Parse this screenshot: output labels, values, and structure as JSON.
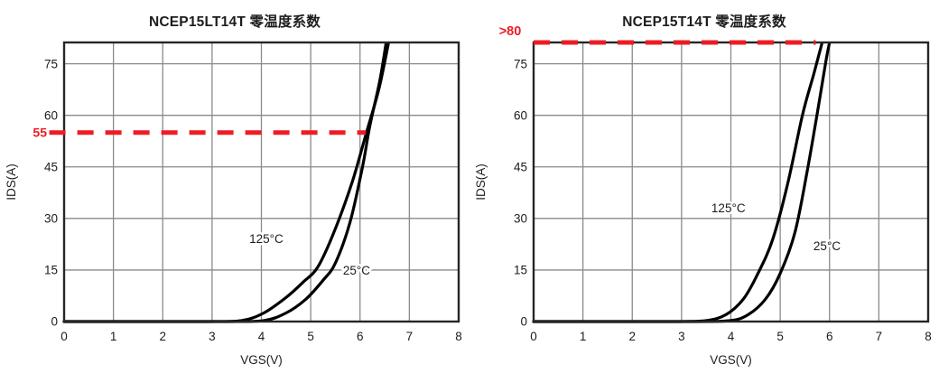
{
  "figure_title": "NCEP15LT14T / NCEP15T14T zero temperature coefficient comparison",
  "colors": {
    "background": "#ffffff",
    "annotation_red": "#ed1c24",
    "grid": "#8a8a8a",
    "plot_border": "#262626",
    "curve": "#000000",
    "text": "#1c1c1c"
  },
  "chart_data": [
    {
      "type": "line",
      "title": "NCEP15LT14T 零温度系数",
      "xlabel": "VGS(V)",
      "ylabel": "IDS(A)",
      "xlim": [
        0,
        8
      ],
      "ylim": [
        0,
        81.2
      ],
      "xticks": [
        0,
        1,
        2,
        3,
        4,
        5,
        6,
        7,
        8
      ],
      "yticks": [
        0,
        15,
        30,
        45,
        60,
        75
      ],
      "grid": true,
      "legend_position": "inline-labels",
      "series": [
        {
          "name": "125°C",
          "label_pos": {
            "x": 4.1,
            "y": 24
          },
          "points": [
            [
              0,
              0
            ],
            [
              1.6,
              0
            ],
            [
              2.9,
              0
            ],
            [
              3.6,
              0.3
            ],
            [
              4.05,
              2.5
            ],
            [
              4.5,
              7
            ],
            [
              4.85,
              11.5
            ],
            [
              5.15,
              16
            ],
            [
              5.5,
              27
            ],
            [
              5.85,
              41
            ],
            [
              6.13,
              55
            ],
            [
              6.38,
              67.5
            ],
            [
              6.58,
              81.2
            ]
          ]
        },
        {
          "name": "25°C",
          "label_pos": {
            "x": 5.93,
            "y": 14.8
          },
          "points": [
            [
              0,
              0
            ],
            [
              1.8,
              0
            ],
            [
              3.3,
              0
            ],
            [
              4.05,
              0.3
            ],
            [
              4.5,
              2.5
            ],
            [
              4.9,
              6.5
            ],
            [
              5.25,
              12
            ],
            [
              5.5,
              17
            ],
            [
              5.8,
              29
            ],
            [
              6.05,
              45
            ],
            [
              6.2,
              57
            ],
            [
              6.4,
              70
            ],
            [
              6.53,
              81.2
            ]
          ]
        }
      ],
      "annotation": {
        "text": "55",
        "value": 55,
        "x_start": -0.3,
        "x_end": 6.12,
        "at_top": false,
        "meaning": "zero-temperature-coefficient crossover current"
      }
    },
    {
      "type": "line",
      "title": "NCEP15T14T 零温度系数",
      "xlabel": "VGS(V)",
      "ylabel": "IDS(A)",
      "xlim": [
        0,
        8
      ],
      "ylim": [
        0,
        81.2
      ],
      "xticks": [
        0,
        1,
        2,
        3,
        4,
        5,
        6,
        7,
        8
      ],
      "yticks": [
        0,
        15,
        30,
        45,
        60,
        75
      ],
      "grid": true,
      "legend_position": "inline-labels",
      "series": [
        {
          "name": "125°C",
          "label_pos": {
            "x": 3.95,
            "y": 33
          },
          "points": [
            [
              0,
              0
            ],
            [
              1.6,
              0
            ],
            [
              2.9,
              0
            ],
            [
              3.5,
              0.3
            ],
            [
              3.9,
              2
            ],
            [
              4.25,
              6.5
            ],
            [
              4.55,
              14
            ],
            [
              4.85,
              24
            ],
            [
              5.15,
              40
            ],
            [
              5.45,
              60
            ],
            [
              5.68,
              72
            ],
            [
              5.85,
              81.2
            ]
          ]
        },
        {
          "name": "25°C",
          "label_pos": {
            "x": 5.95,
            "y": 22
          },
          "points": [
            [
              0,
              0
            ],
            [
              1.8,
              0
            ],
            [
              3.3,
              0
            ],
            [
              4.0,
              0.3
            ],
            [
              4.35,
              2
            ],
            [
              4.7,
              6.5
            ],
            [
              5.0,
              14
            ],
            [
              5.3,
              26
            ],
            [
              5.55,
              44
            ],
            [
              5.78,
              63
            ],
            [
              5.93,
              76
            ],
            [
              6.0,
              81.2
            ]
          ]
        }
      ],
      "annotation": {
        "text": ">80",
        "value": 80,
        "x_start": 0,
        "x_end": 5.72,
        "at_top": true,
        "meaning": "zero-temperature-coefficient crossover current above plot range"
      }
    }
  ]
}
